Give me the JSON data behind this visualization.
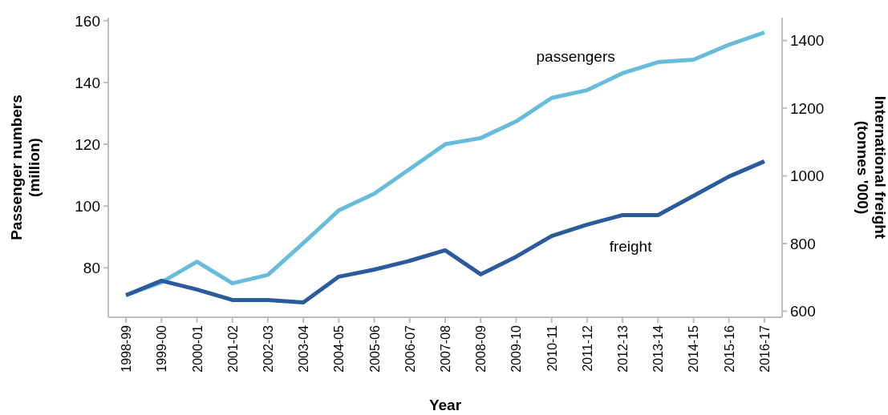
{
  "chart_data": {
    "type": "line",
    "xlabel": "Year",
    "ylabel": "Passenger numbers\n(million)",
    "y2label": "International freight\n(tonnes '000)",
    "categories": [
      "1998-99",
      "1999-00",
      "2000-01",
      "2001-02",
      "2002-03",
      "2003-04",
      "2004-05",
      "2005-06",
      "2006-07",
      "2007-08",
      "2008-09",
      "2009-10",
      "2010-11",
      "2011-12",
      "2012-13",
      "2013-14",
      "2014-15",
      "2015-16",
      "2016-17"
    ],
    "series": [
      {
        "name": "passengers",
        "color": "#67bcdc",
        "values": [
          71.2,
          75.3,
          82,
          75,
          77.7,
          88,
          98.6,
          104,
          112,
          120,
          122,
          127.4,
          135,
          137.5,
          143,
          146.6,
          147.4,
          152.2,
          156.2
        ]
      },
      {
        "name": "freight",
        "color": "#2a5b9b",
        "axis": "y2",
        "values": [
          647,
          690,
          664,
          633,
          633,
          626,
          702,
          723,
          749,
          780,
          709,
          761,
          822,
          856,
          884,
          884,
          941,
          998,
          1043
        ]
      }
    ],
    "ylim": [
      64,
      161
    ],
    "yticks": [
      80,
      100,
      120,
      140,
      160
    ],
    "y2lim": [
      582,
      1468
    ],
    "y2ticks": [
      600,
      800,
      1000,
      1200,
      1400
    ],
    "grid": false,
    "marker": "none",
    "line_style": "solid"
  }
}
